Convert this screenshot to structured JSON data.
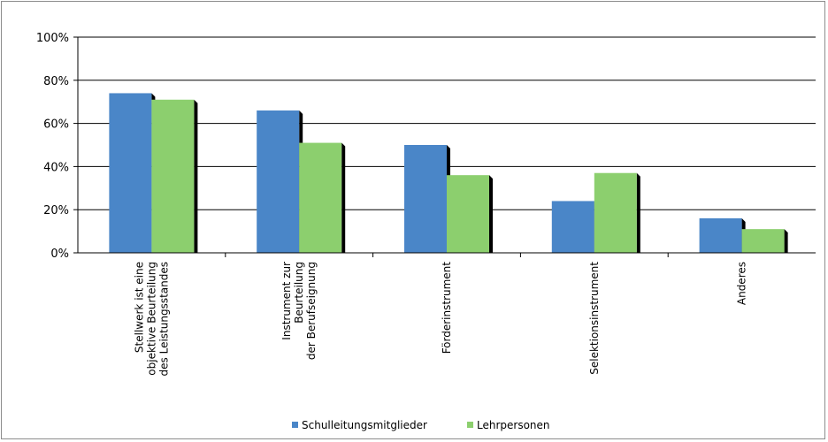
{
  "chart_data": {
    "type": "bar",
    "title": "",
    "xlabel": "",
    "ylabel": "",
    "ylim": [
      0,
      100
    ],
    "yticks": [
      "0%",
      "20%",
      "40%",
      "60%",
      "80%",
      "100%"
    ],
    "ytick_values": [
      0,
      20,
      40,
      60,
      80,
      100
    ],
    "grid": true,
    "legend_position": "bottom",
    "categories": [
      [
        "Stellwerk ist eine",
        "objektive Beurteilung",
        "des Leistungsstandes"
      ],
      [
        "Instrument zur",
        "Beurteilung",
        "der Berufseignung"
      ],
      [
        "Förderinstrument"
      ],
      [
        "Selektionsinstrument"
      ],
      [
        "Anderes"
      ]
    ],
    "series": [
      {
        "name": "Schulleitungsmitglieder",
        "color": "#4a86c8",
        "values": [
          74,
          66,
          50,
          24,
          16
        ]
      },
      {
        "name": "Lehrpersonen",
        "color": "#8ccf6e",
        "values": [
          71,
          51,
          36,
          37,
          11
        ]
      }
    ]
  }
}
